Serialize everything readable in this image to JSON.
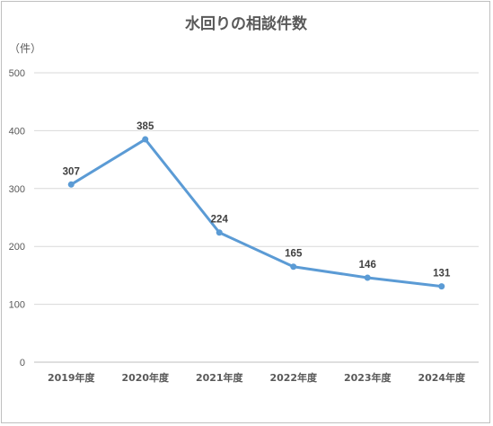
{
  "chart_data": {
    "type": "line",
    "title": "水回りの相談件数",
    "unit_label": "（件）",
    "ylim": [
      0,
      500
    ],
    "yticks": [
      "0",
      "100",
      "200",
      "300",
      "400",
      "500"
    ],
    "categories": [
      "2019年度",
      "2020年度",
      "2021年度",
      "2022年度",
      "2023年度",
      "2024年度"
    ],
    "values": [
      307,
      385,
      224,
      165,
      146,
      131
    ],
    "data_labels": [
      "307",
      "385",
      "224",
      "165",
      "146",
      "131"
    ],
    "grid": true,
    "legend": "none",
    "color": "#5b9bd5"
  }
}
